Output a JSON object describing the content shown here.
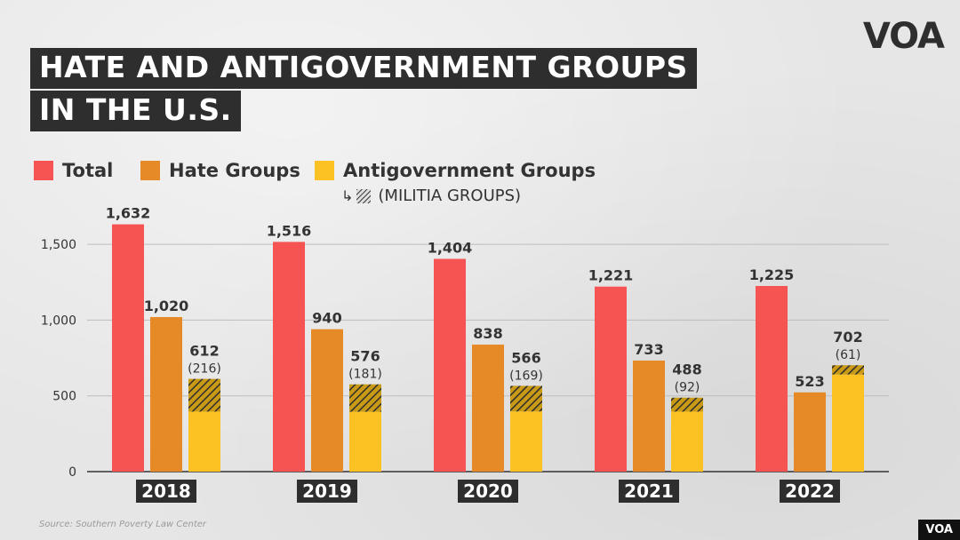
{
  "title": {
    "line1": "Hate and Antigovernment Groups",
    "line2": "in the U.S."
  },
  "logo": "VOA",
  "badge": "VOA",
  "source": "Source: Southern Poverty Law Center",
  "legend": {
    "total": "Total",
    "hate": "Hate Groups",
    "antigov": "Antigovernment Groups",
    "militia": "(MILITIA GROUPS)"
  },
  "colors": {
    "total": "#f65353",
    "hate": "#e58a27",
    "antigov": "#fcc122",
    "militia_stripe": "#333333",
    "year_label_bg": "#2e2e2e",
    "axis": "#333333",
    "grid": "#bdbdbd"
  },
  "chart_data": {
    "type": "bar",
    "categories": [
      "2018",
      "2019",
      "2020",
      "2021",
      "2022"
    ],
    "series": [
      {
        "name": "Total",
        "values": [
          1632,
          1516,
          1404,
          1221,
          1225
        ],
        "labels": [
          "1,632",
          "1,516",
          "1,404",
          "1,221",
          "1,225"
        ]
      },
      {
        "name": "Hate Groups",
        "values": [
          1020,
          940,
          838,
          733,
          523
        ],
        "labels": [
          "1,020",
          "940",
          "838",
          "733",
          "523"
        ]
      },
      {
        "name": "Antigovernment Groups",
        "values": [
          612,
          576,
          566,
          488,
          702
        ],
        "labels": [
          "612",
          "576",
          "566",
          "488",
          "702"
        ]
      },
      {
        "name": "(MILITIA GROUPS)",
        "values": [
          216,
          181,
          169,
          92,
          61
        ],
        "labels": [
          "(216)",
          "(181)",
          "(169)",
          "(92)",
          "(61)"
        ]
      }
    ],
    "yticks": [
      0,
      500,
      1000,
      1500
    ],
    "ytick_labels": [
      "0",
      "500",
      "1,000",
      "1,500"
    ],
    "ylim": [
      0,
      1700
    ],
    "grid": true,
    "legend_position": "top-left",
    "xlabel": "",
    "ylabel": ""
  }
}
